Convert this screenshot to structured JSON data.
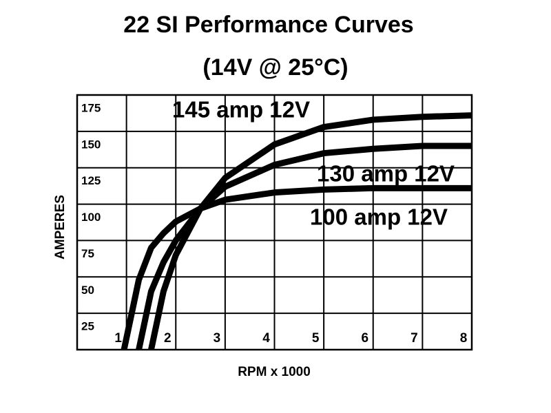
{
  "chart_data": {
    "type": "line",
    "title": "22 SI Performance Curves",
    "subtitle": "(14V @ 25°C)",
    "x_label": "RPM x 1000",
    "y_label": "AMPERES",
    "x": [
      0.95,
      1.25,
      1.5,
      1.75,
      2,
      2.5,
      3,
      4,
      5,
      6,
      7,
      8
    ],
    "series": [
      {
        "name": "145 amp 12V",
        "color": "#000000",
        "values": [
          null,
          null,
          0,
          40,
          65,
          97,
          118,
          141,
          153,
          158,
          160,
          161
        ]
      },
      {
        "name": "130 amp 12V",
        "color": "#000000",
        "values": [
          null,
          0,
          40,
          60,
          75,
          97,
          112,
          127,
          135,
          138,
          140,
          140
        ]
      },
      {
        "name": "100 amp 12V",
        "color": "#000000",
        "values": [
          0,
          48,
          70,
          80,
          88,
          97,
          103,
          108,
          110,
          111,
          111,
          111
        ]
      }
    ],
    "xlim": [
      0,
      8
    ],
    "xticks": [
      1,
      2,
      3,
      4,
      5,
      6,
      7,
      8
    ],
    "ylim": [
      0,
      175
    ],
    "yticks": [
      25,
      50,
      75,
      100,
      125,
      150,
      175
    ],
    "grid": true
  }
}
